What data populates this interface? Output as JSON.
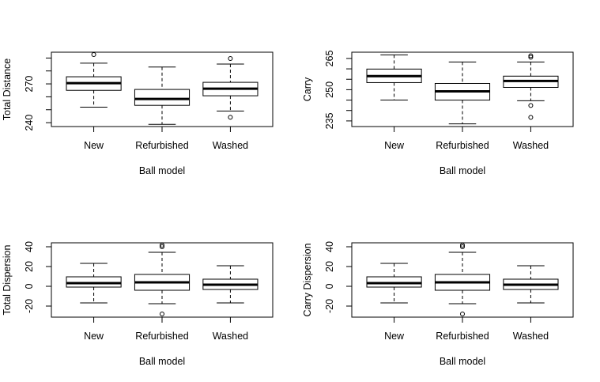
{
  "chart_data": [
    {
      "type": "box",
      "ylabel": "Total Distance",
      "xlabel": "Ball model",
      "categories": [
        "New",
        "Refurbished",
        "Washed"
      ],
      "boxes": [
        {
          "whisker_low": 252,
          "q1": 265,
          "median": 270.6,
          "q3": 275.5,
          "whisker_high": 286,
          "outliers": [
            292.7
          ]
        },
        {
          "whisker_low": 238.7,
          "q1": 253.4,
          "median": 258.3,
          "q3": 265.7,
          "whisker_high": 283,
          "outliers": []
        },
        {
          "whisker_low": 249,
          "q1": 260.8,
          "median": 266.3,
          "q3": 271.2,
          "whisker_high": 285.3,
          "outliers": [
            289.6,
            244.2
          ]
        }
      ],
      "ylim": [
        237,
        294.5
      ],
      "yticks": [
        240,
        270
      ],
      "minor_yticks": [
        250,
        260,
        280,
        290
      ]
    },
    {
      "type": "box",
      "ylabel": "Carry",
      "xlabel": "Ball model",
      "categories": [
        "New",
        "Refurbished",
        "Washed"
      ],
      "boxes": [
        {
          "whisker_low": 245,
          "q1": 253.4,
          "median": 256.5,
          "q3": 259.9,
          "whisker_high": 266.7,
          "outliers": []
        },
        {
          "whisker_low": 233.6,
          "q1": 245,
          "median": 249.2,
          "q3": 253,
          "whisker_high": 263.3,
          "outliers": []
        },
        {
          "whisker_low": 244.7,
          "q1": 251.1,
          "median": 254.2,
          "q3": 256.5,
          "whisker_high": 263.3,
          "outliers": [
            266.3,
            265.6,
            242.4,
            236.7
          ]
        }
      ],
      "ylim": [
        232.3,
        268
      ],
      "yticks": [
        235,
        250,
        265
      ],
      "minor_yticks": [
        240,
        245,
        255,
        260
      ]
    },
    {
      "type": "box",
      "ylabel": "Total Dispersion",
      "xlabel": "Ball model",
      "categories": [
        "New",
        "Refurbished",
        "Washed"
      ],
      "boxes": [
        {
          "whisker_low": -16.8,
          "q1": -0.8,
          "median": 3.2,
          "q3": 9.6,
          "whisker_high": 23.2,
          "outliers": []
        },
        {
          "whisker_low": -17.6,
          "q1": -4,
          "median": 4,
          "q3": 12,
          "whisker_high": 34.4,
          "outliers": [
            41.6,
            40,
            -28
          ]
        },
        {
          "whisker_low": -16.8,
          "q1": -3.2,
          "median": 1.6,
          "q3": 7.2,
          "whisker_high": 20.8,
          "outliers": []
        }
      ],
      "ylim": [
        -31.2,
        44
      ],
      "yticks": [
        -20,
        0,
        20,
        40
      ]
    },
    {
      "type": "box",
      "ylabel": "Carry Dispersion",
      "xlabel": "Ball model",
      "categories": [
        "New",
        "Refurbished",
        "Washed"
      ],
      "boxes": [
        {
          "whisker_low": -16.8,
          "q1": -0.8,
          "median": 3.2,
          "q3": 9.6,
          "whisker_high": 23.2,
          "outliers": []
        },
        {
          "whisker_low": -17.6,
          "q1": -4,
          "median": 4,
          "q3": 12,
          "whisker_high": 34.4,
          "outliers": [
            41.6,
            40,
            -28
          ]
        },
        {
          "whisker_low": -16.8,
          "q1": -3.2,
          "median": 1.6,
          "q3": 7.2,
          "whisker_high": 20.8,
          "outliers": []
        }
      ],
      "ylim": [
        -31.2,
        44
      ],
      "yticks": [
        -20,
        0,
        20,
        40
      ]
    }
  ]
}
